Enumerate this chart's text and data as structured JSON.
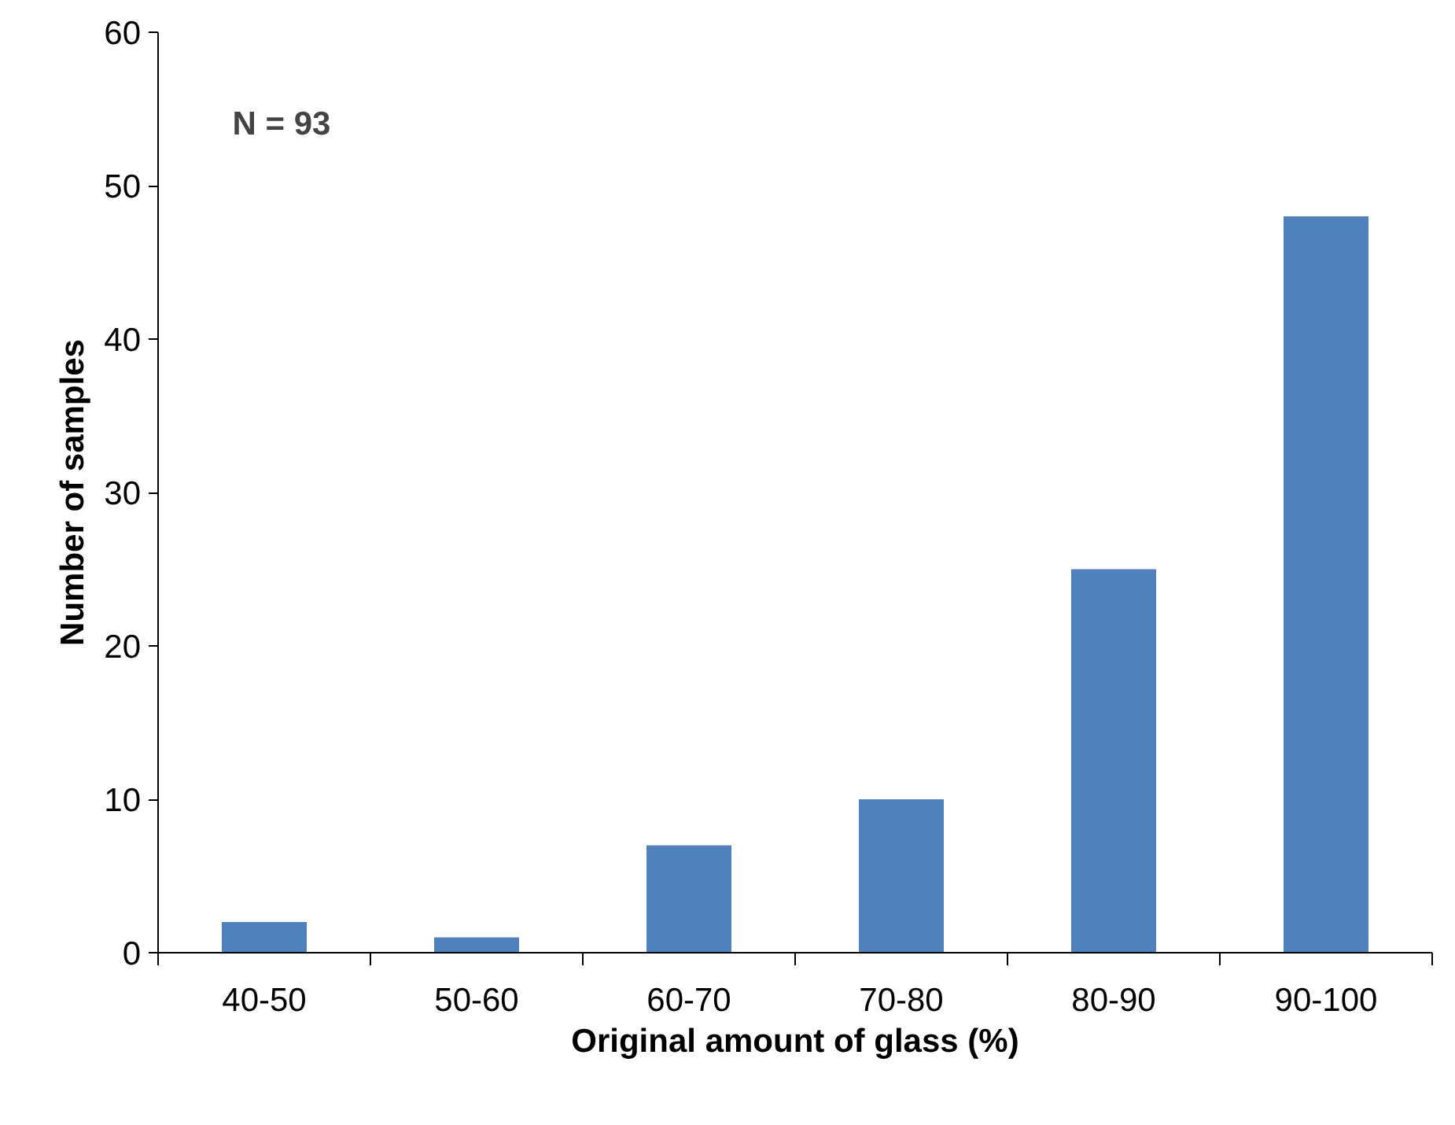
{
  "chart_data": {
    "type": "bar",
    "xlabel": "Original amount of glass (%)",
    "ylabel": "Number of samples",
    "categories": [
      "40-50",
      "50-60",
      "60-70",
      "70-80",
      "80-90",
      "90-100"
    ],
    "values": [
      2,
      1,
      7,
      10,
      25,
      48
    ],
    "color": "#4f81bd",
    "ylim": [
      0,
      60
    ],
    "yticks": [
      0,
      10,
      20,
      30,
      40,
      50,
      60
    ],
    "grid": false,
    "annotations": [
      "N = 93"
    ]
  }
}
